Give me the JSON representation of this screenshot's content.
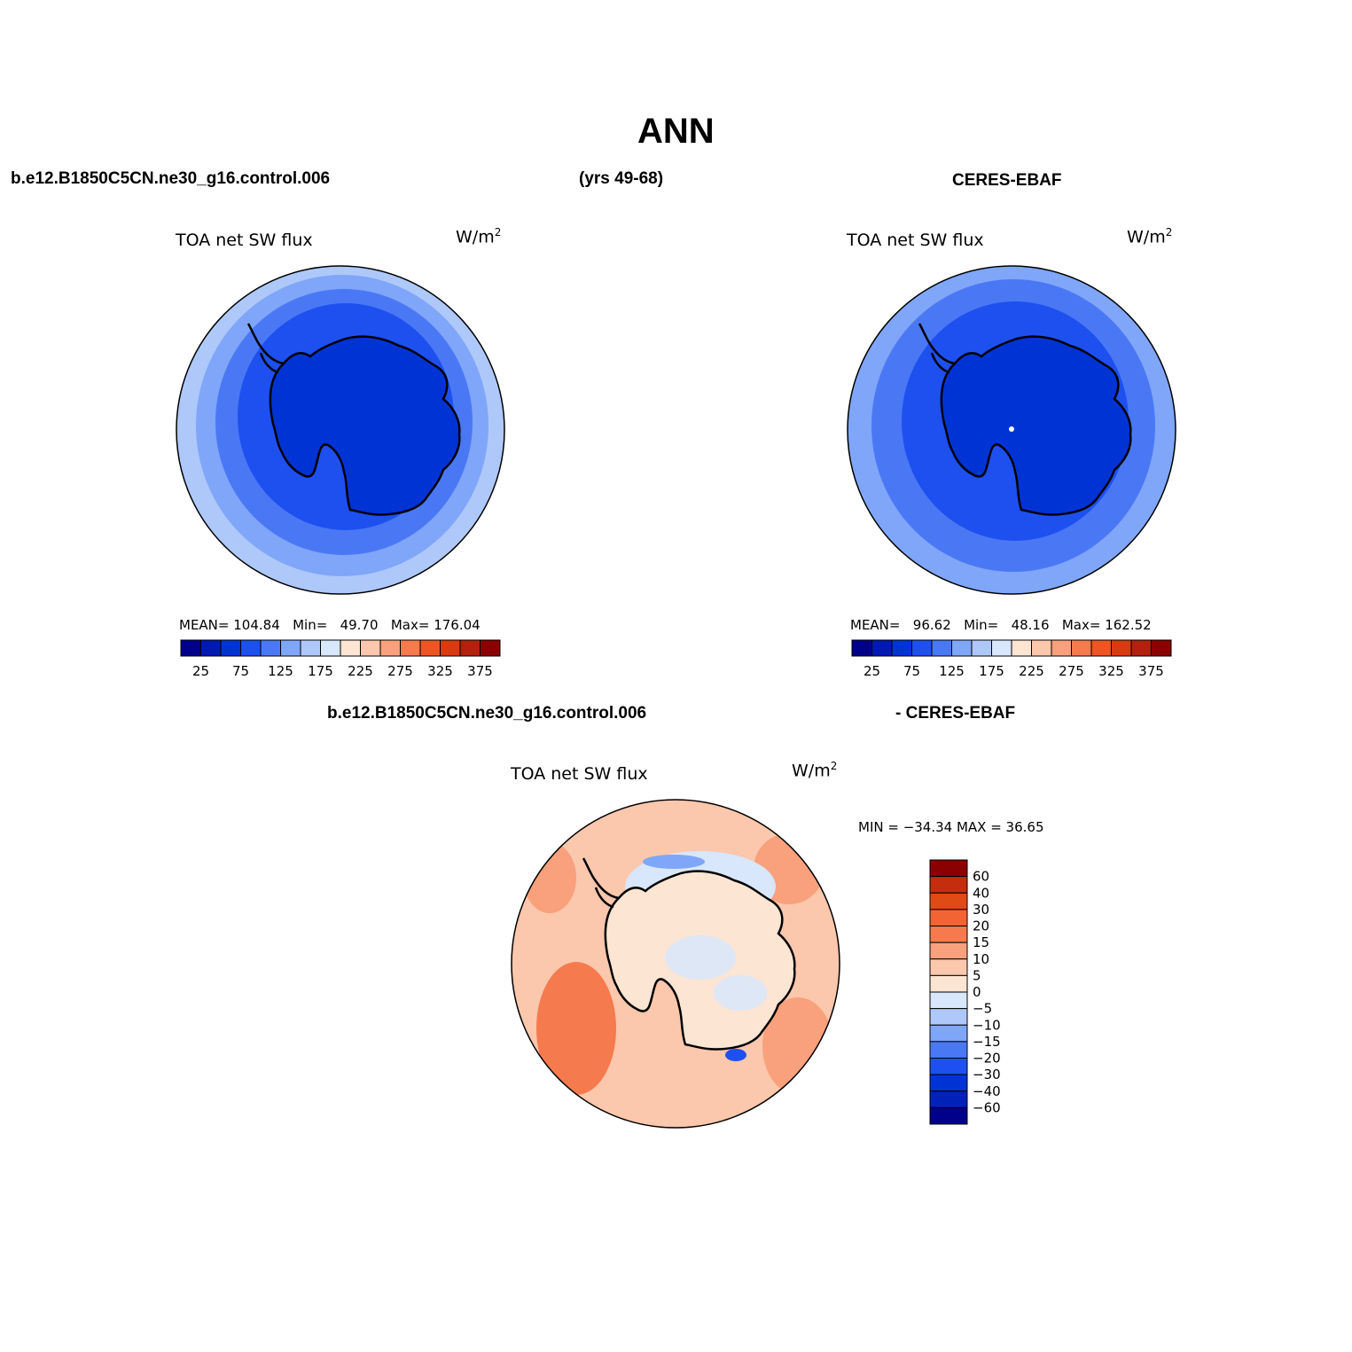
{
  "page": {
    "title": "ANN",
    "case_name": "b.e12.B1850C5CN.ne30_g16.control.006",
    "years": "(yrs 49-68)",
    "obs_name": "CERES-EBAF",
    "diff_case": "b.e12.B1850C5CN.ne30_g16.control.006",
    "diff_obs": "- CERES-EBAF"
  },
  "panels": {
    "model": {
      "label": "TOA net SW flux",
      "units": "W/m",
      "units_sup": "2",
      "mean_label": "MEAN=",
      "mean": "104.84",
      "min_label": "Min=",
      "min": "49.70",
      "max_label": "Max=",
      "max": "176.04"
    },
    "obs": {
      "label": "TOA net SW flux",
      "units": "W/m",
      "units_sup": "2",
      "mean_label": "MEAN=",
      "mean": "96.62",
      "min_label": "Min=",
      "min": "48.16",
      "max_label": "Max=",
      "max": "162.52"
    },
    "diff": {
      "label": "TOA net SW flux",
      "units": "W/m",
      "units_sup": "2",
      "minmax": "MIN = −34.34 MAX =  36.65"
    }
  },
  "colorbar_top": {
    "colors": [
      "#00008b",
      "#0019b3",
      "#0033d4",
      "#1e50f0",
      "#4a78f5",
      "#7fa6f8",
      "#aec8fa",
      "#d8e7fb",
      "#fde5d4",
      "#fbc7ad",
      "#f8a17c",
      "#f57a4e",
      "#ee5520",
      "#d93b0f",
      "#b3200d",
      "#8b0000"
    ],
    "labels": [
      "25",
      "75",
      "125",
      "175",
      "225",
      "275",
      "325",
      "375"
    ]
  },
  "colorbar_diff": {
    "colors": [
      "#00008b",
      "#0022b8",
      "#0033d4",
      "#1e50f0",
      "#4a78f5",
      "#7fa6f8",
      "#aec8fa",
      "#d8e7fb",
      "#fde5d4",
      "#fbc7ad",
      "#f8a17c",
      "#f57a4e",
      "#f26433",
      "#e04a14",
      "#c42d0e",
      "#8b0000"
    ],
    "labels": [
      "60",
      "40",
      "30",
      "20",
      "15",
      "10",
      "5",
      "0",
      "−5",
      "−10",
      "−15",
      "−20",
      "−30",
      "−40",
      "−60"
    ]
  }
}
